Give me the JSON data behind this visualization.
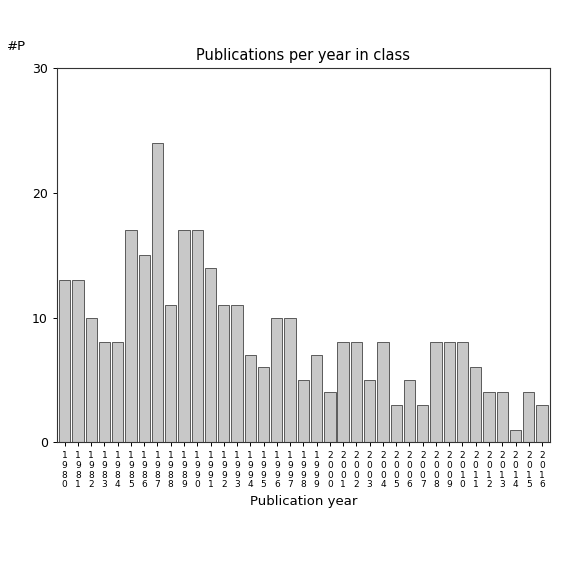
{
  "years": [
    "1980",
    "1981",
    "1982",
    "1983",
    "1984",
    "1985",
    "1986",
    "1987",
    "1988",
    "1989",
    "1990",
    "1991",
    "1992",
    "1993",
    "1994",
    "1995",
    "1996",
    "1997",
    "1998",
    "1999",
    "2000",
    "2001",
    "2002",
    "2003",
    "2004",
    "2005",
    "2006",
    "2007",
    "2008",
    "2009",
    "2010",
    "2011",
    "2012",
    "2013",
    "2014",
    "2015",
    "2016"
  ],
  "values": [
    13,
    13,
    10,
    8,
    8,
    17,
    15,
    24,
    11,
    17,
    17,
    14,
    11,
    11,
    7,
    6,
    10,
    10,
    5,
    7,
    4,
    8,
    8,
    5,
    8,
    3,
    5,
    3,
    8,
    8,
    8,
    6,
    4,
    4,
    1,
    4,
    3
  ],
  "title": "Publications per year in class",
  "xlabel": "Publication year",
  "ylabel": "#P",
  "bar_color": "#c8c8c8",
  "bar_edge_color": "#444444",
  "ylim": [
    0,
    30
  ],
  "yticks": [
    0,
    10,
    20,
    30
  ],
  "background_color": "#ffffff",
  "figsize": [
    5.67,
    5.67
  ],
  "dpi": 100
}
